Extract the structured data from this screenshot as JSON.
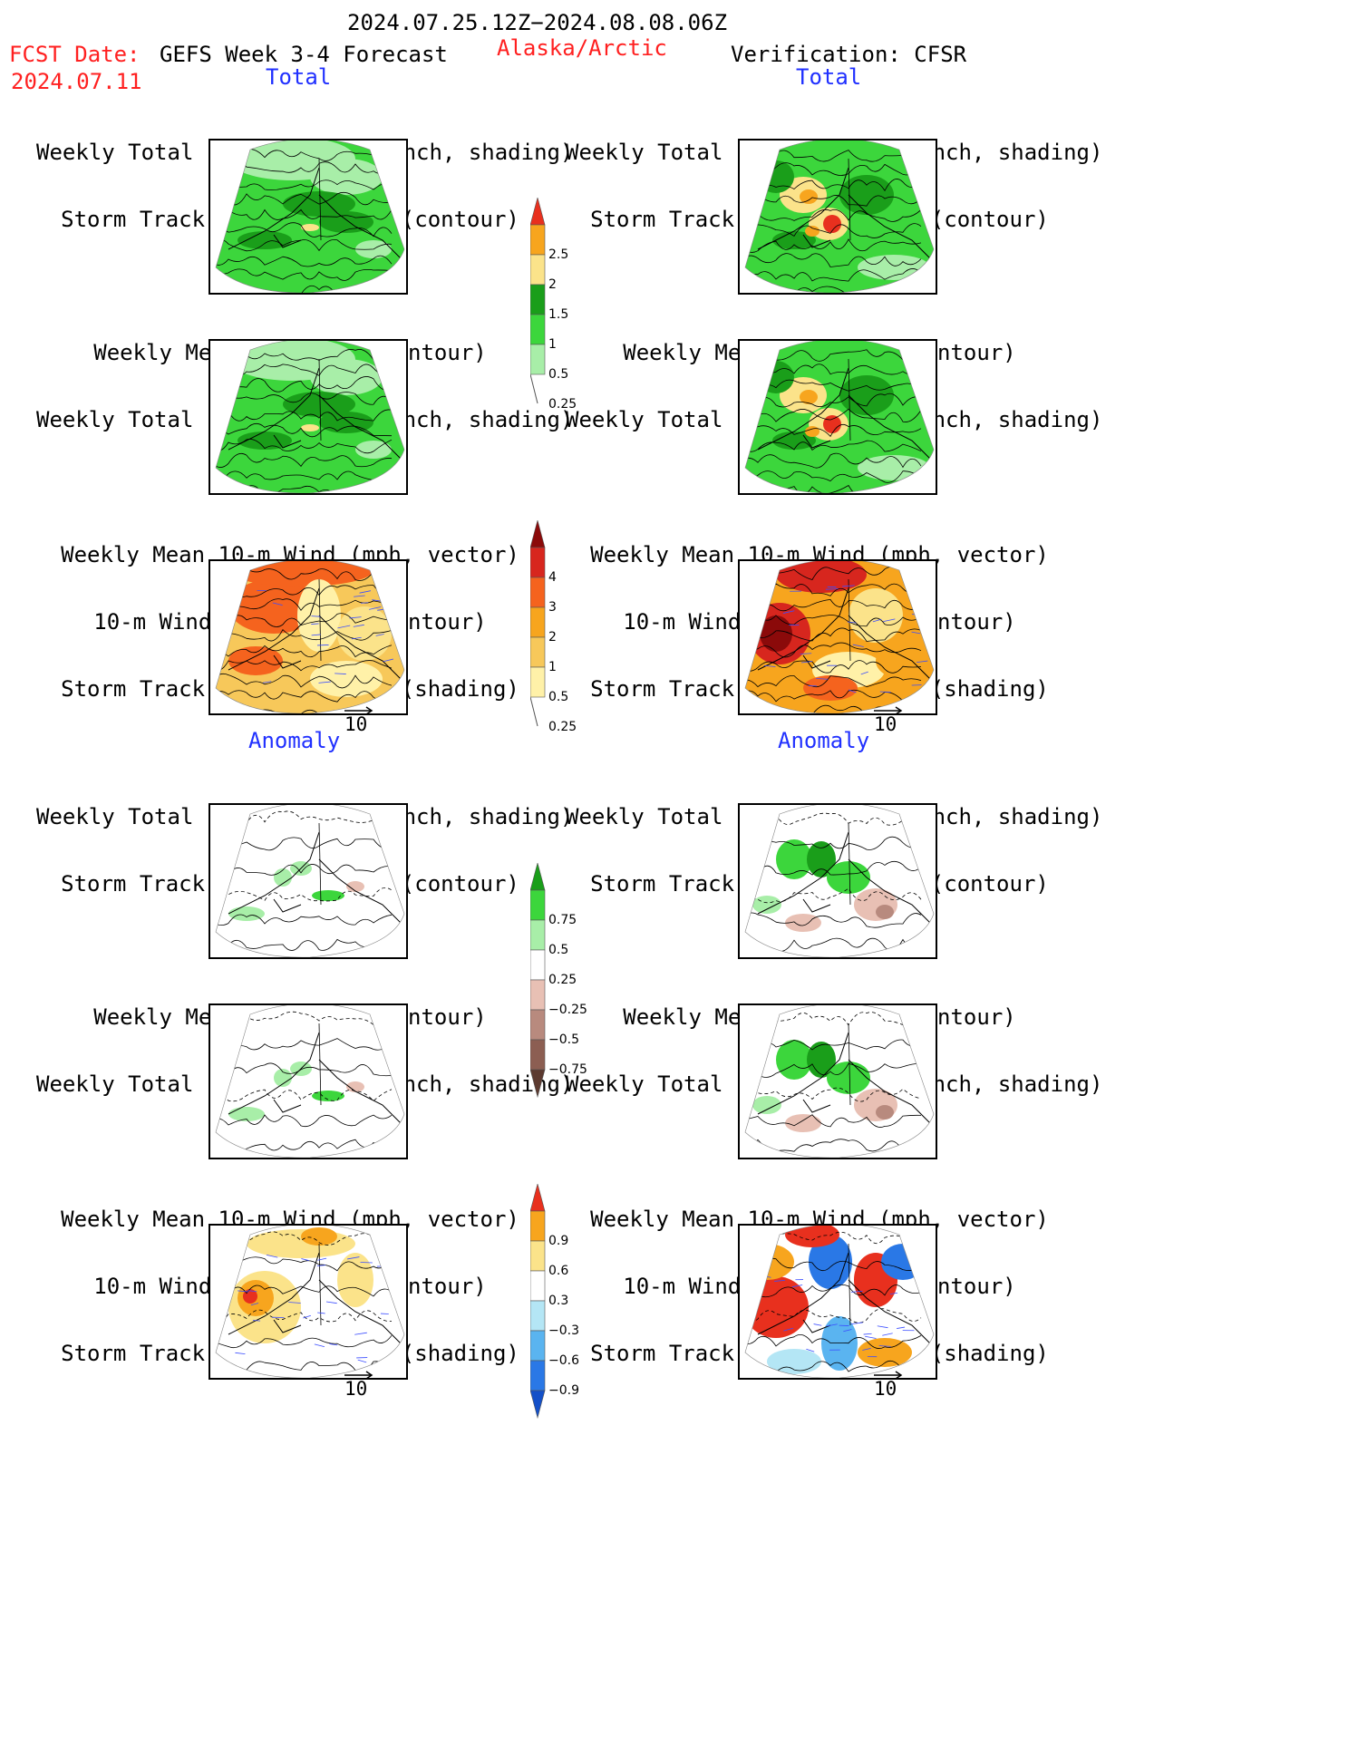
{
  "header": {
    "period": "2024.07.25.12Z−2024.08.08.06Z",
    "fcst_label": "FCST Date:",
    "fcst_date": "2024.07.11",
    "model": "GEFS Week 3-4 Forecast",
    "region": "Alaska/Arctic",
    "verification": "Verification: CFSR"
  },
  "sections": {
    "total": "Total",
    "anomaly": "Anomaly"
  },
  "titles": {
    "precip_storm": [
      "Weekly Total Precip/7-day (inch, shading)",
      "Storm Track Density/7-day (contour)"
    ],
    "slp_precip": [
      "Weekly Mean SLP (hPa, contour)",
      "Weekly Total Precip/7-day (inch, shading)"
    ],
    "wind_storm": [
      "Weekly Mean 10-m Wind (mph, vector)",
      "10-m Wind Speed (mph, contour)",
      "Storm Track Density/7-day (shading)"
    ]
  },
  "vector_ref": "10",
  "colorbars": {
    "precip_total": {
      "labels": [
        "2.5",
        "2",
        "1.5",
        "1",
        "0.5",
        "0.25"
      ],
      "colors": [
        "#e8301e",
        "#f7a51e",
        "#fbe38a",
        "#1a9e1a",
        "#3cd63c",
        "#a8eea8"
      ]
    },
    "storm_total": {
      "labels": [
        "4",
        "3",
        "2",
        "1",
        "0.5",
        "0.25"
      ],
      "colors": [
        "#8b0a0a",
        "#d7261e",
        "#f5631e",
        "#f7a51e",
        "#f7c85a",
        "#fff1a8"
      ]
    },
    "precip_anom": {
      "labels": [
        "0.75",
        "0.5",
        "0.25",
        "−0.25",
        "−0.5",
        "−0.75"
      ],
      "colors": [
        "#1a9e1a",
        "#3cd63c",
        "#a8eea8",
        "#ffffff",
        "#e8c0b4",
        "#b88a7e",
        "#8c5e52",
        "#5c3a30"
      ]
    },
    "storm_anom": {
      "labels": [
        "0.9",
        "0.6",
        "0.3",
        "−0.3",
        "−0.6",
        "−0.9"
      ],
      "colors": [
        "#e8301e",
        "#f7a51e",
        "#fbe38a",
        "#ffffff",
        "#b4e6f5",
        "#5ab4f0",
        "#2a78e6",
        "#1450c8"
      ]
    }
  },
  "icons": {
    "map": "alaska-polar-map-icon",
    "vector": "reference-arrow-icon"
  }
}
